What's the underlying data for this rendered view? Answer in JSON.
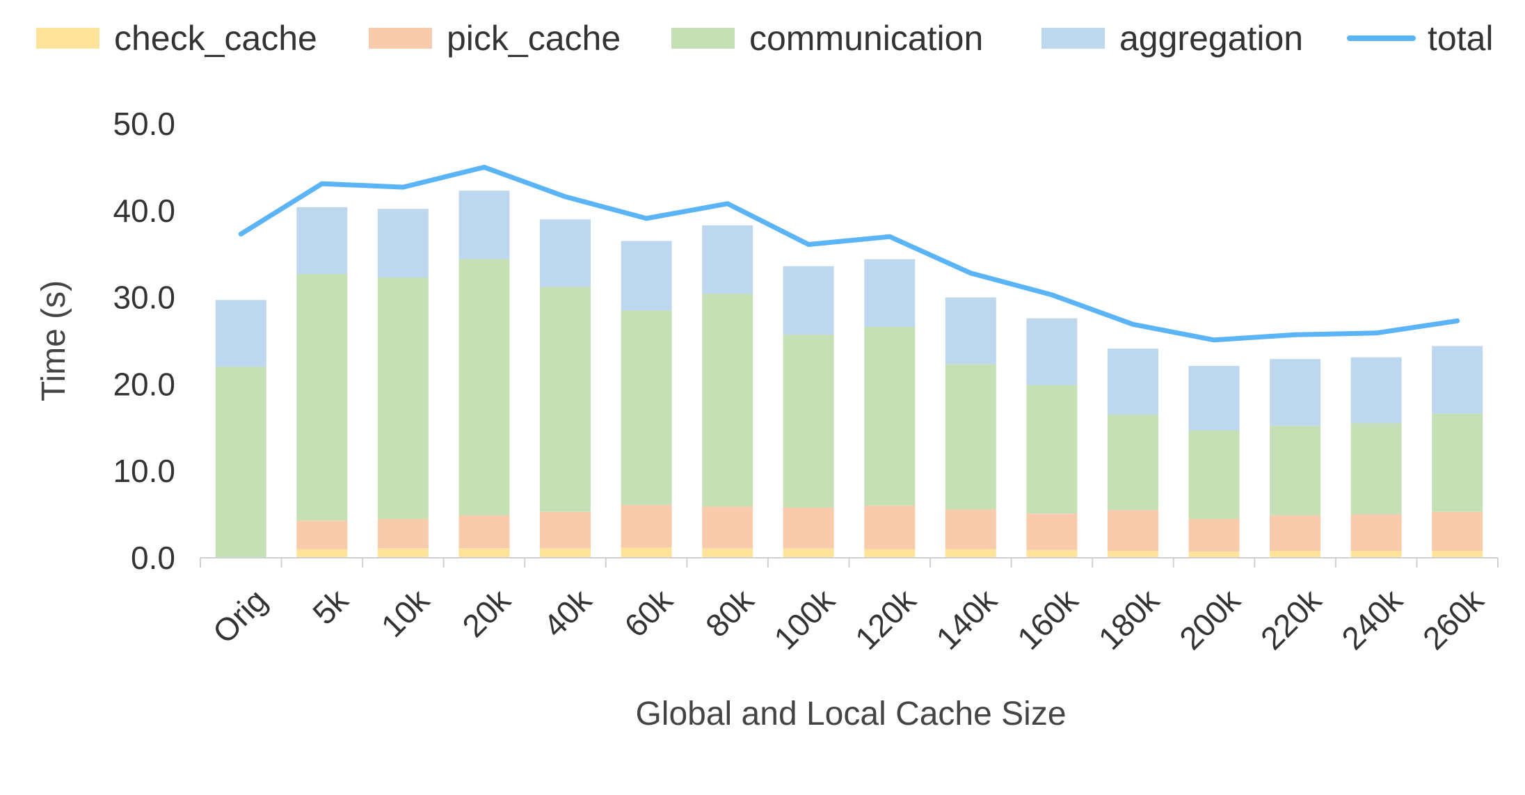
{
  "chart_data": {
    "type": "bar",
    "stacked": true,
    "categories": [
      "Orig",
      "5k",
      "10k",
      "20k",
      "40k",
      "60k",
      "80k",
      "100k",
      "120k",
      "140k",
      "160k",
      "180k",
      "200k",
      "220k",
      "240k",
      "260k"
    ],
    "series": [
      {
        "name": "check_cache",
        "type": "bar",
        "color": "#FDE49A",
        "values": [
          0.0,
          1.0,
          1.1,
          1.1,
          1.1,
          1.2,
          1.1,
          1.1,
          1.0,
          1.0,
          0.9,
          0.8,
          0.7,
          0.8,
          0.8,
          0.8
        ]
      },
      {
        "name": "pick_cache",
        "type": "bar",
        "color": "#F8CBAD",
        "values": [
          0.0,
          3.3,
          3.4,
          3.8,
          4.2,
          4.9,
          4.8,
          4.7,
          5.0,
          4.6,
          4.2,
          4.7,
          3.8,
          4.1,
          4.2,
          4.5
        ]
      },
      {
        "name": "communication",
        "type": "bar",
        "color": "#C5E0B4",
        "values": [
          22.0,
          28.4,
          27.8,
          29.5,
          25.9,
          22.4,
          24.5,
          19.9,
          20.6,
          16.7,
          14.8,
          11.0,
          10.2,
          10.3,
          10.5,
          11.3
        ]
      },
      {
        "name": "aggregation",
        "type": "bar",
        "color": "#BDD7EE",
        "values": [
          7.7,
          7.7,
          7.9,
          7.9,
          7.8,
          8.0,
          7.9,
          7.9,
          7.8,
          7.7,
          7.7,
          7.6,
          7.4,
          7.7,
          7.6,
          7.8
        ]
      },
      {
        "name": "total",
        "type": "line",
        "color": "#5AB4F5",
        "values": [
          37.3,
          43.1,
          42.7,
          45.0,
          41.6,
          39.1,
          40.8,
          36.1,
          37.0,
          32.8,
          30.3,
          26.9,
          25.1,
          25.7,
          25.9,
          27.3
        ]
      }
    ],
    "xlabel": "Global and Local Cache Size",
    "ylabel": "Time (s)",
    "ylim": [
      0,
      50
    ],
    "yticks": [
      "0.0",
      "10.0",
      "20.0",
      "30.0",
      "40.0",
      "50.0"
    ],
    "grid": false,
    "legend_position": "top"
  }
}
